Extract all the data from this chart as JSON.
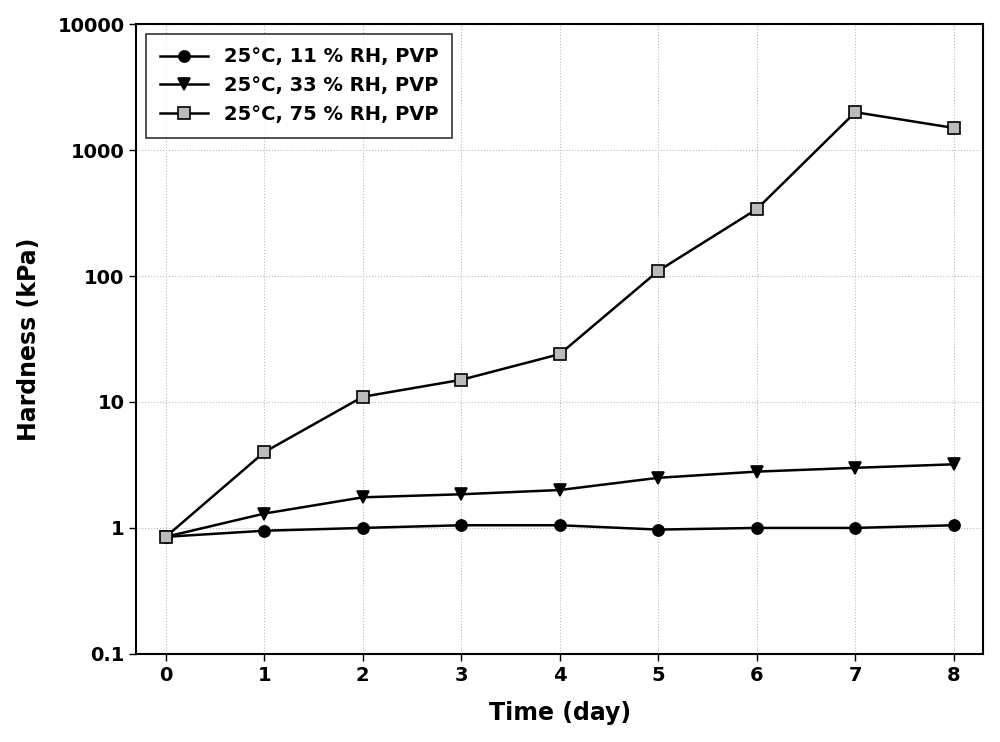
{
  "time": [
    0,
    1,
    2,
    3,
    4,
    5,
    6,
    7,
    8
  ],
  "series": [
    {
      "label": "25°C, 11 % RH, PVP",
      "values": [
        0.85,
        0.95,
        1.0,
        1.05,
        1.05,
        0.97,
        1.0,
        1.0,
        1.05
      ],
      "color": "#000000",
      "marker": "o",
      "markersize": 8,
      "markerfacecolor": "#000000",
      "markeredgecolor": "#000000",
      "linewidth": 1.8
    },
    {
      "label": "25°C, 33 % RH, PVP",
      "values": [
        0.85,
        1.3,
        1.75,
        1.85,
        2.0,
        2.5,
        2.8,
        3.0,
        3.2
      ],
      "color": "#000000",
      "marker": "v",
      "markersize": 8,
      "markerfacecolor": "#000000",
      "markeredgecolor": "#000000",
      "linewidth": 1.8
    },
    {
      "label": "25°C, 75 % RH, PVP",
      "values": [
        0.85,
        4.0,
        11.0,
        15.0,
        24.0,
        110.0,
        340.0,
        2000.0,
        1500.0
      ],
      "color": "#000000",
      "marker": "s",
      "markersize": 8,
      "markerfacecolor": "#bbbbbb",
      "markeredgecolor": "#000000",
      "linewidth": 1.8
    }
  ],
  "xlabel": "Time (day)",
  "ylabel": "Hardness (kPa)",
  "ylim": [
    0.1,
    10000
  ],
  "xlim": [
    -0.3,
    8.3
  ],
  "xticks": [
    0,
    1,
    2,
    3,
    4,
    5,
    6,
    7,
    8
  ],
  "yticks": [
    0.1,
    1,
    10,
    100,
    1000,
    10000
  ],
  "ytick_labels": [
    "0.1",
    "1",
    "10",
    "100",
    "1000",
    "10000"
  ],
  "grid_color": "#bbbbbb",
  "grid_linestyle": ":",
  "grid_linewidth": 0.8,
  "background_color": "#ffffff",
  "legend_loc": "upper left",
  "legend_fontsize": 14,
  "axis_label_fontsize": 17,
  "tick_fontsize": 14
}
